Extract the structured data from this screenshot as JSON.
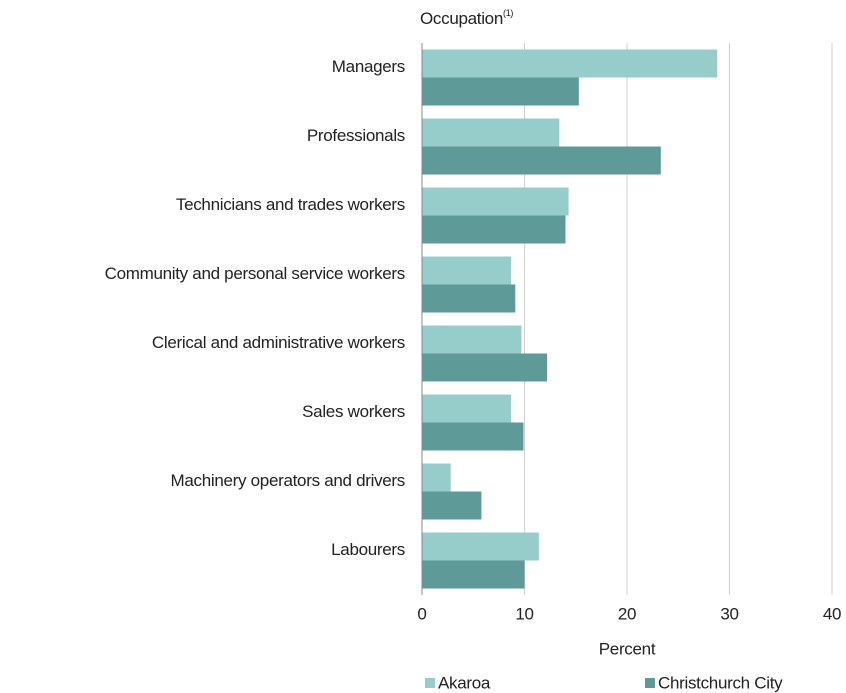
{
  "chart_data": {
    "type": "hbar",
    "title": "Occupation",
    "title_note": "(1)",
    "x_label": "Percent",
    "categories": [
      "Managers",
      "Professionals",
      "Technicians and trades workers",
      "Community and personal service workers",
      "Clerical and administrative workers",
      "Sales workers",
      "Machinery operators and drivers",
      "Labourers"
    ],
    "series": [
      {
        "name": "Akaroa",
        "color": "#96cdcb",
        "values": [
          28.8,
          13.4,
          14.3,
          8.7,
          9.7,
          8.7,
          2.8,
          11.4
        ]
      },
      {
        "name": "Christchurch City",
        "color": "#5e9a97",
        "values": [
          15.3,
          23.3,
          14.0,
          9.1,
          12.2,
          9.9,
          5.8,
          10.0
        ]
      }
    ],
    "xlim": [
      0,
      40
    ],
    "xticks": [
      0,
      10,
      20,
      30,
      40
    ],
    "grid": true
  }
}
